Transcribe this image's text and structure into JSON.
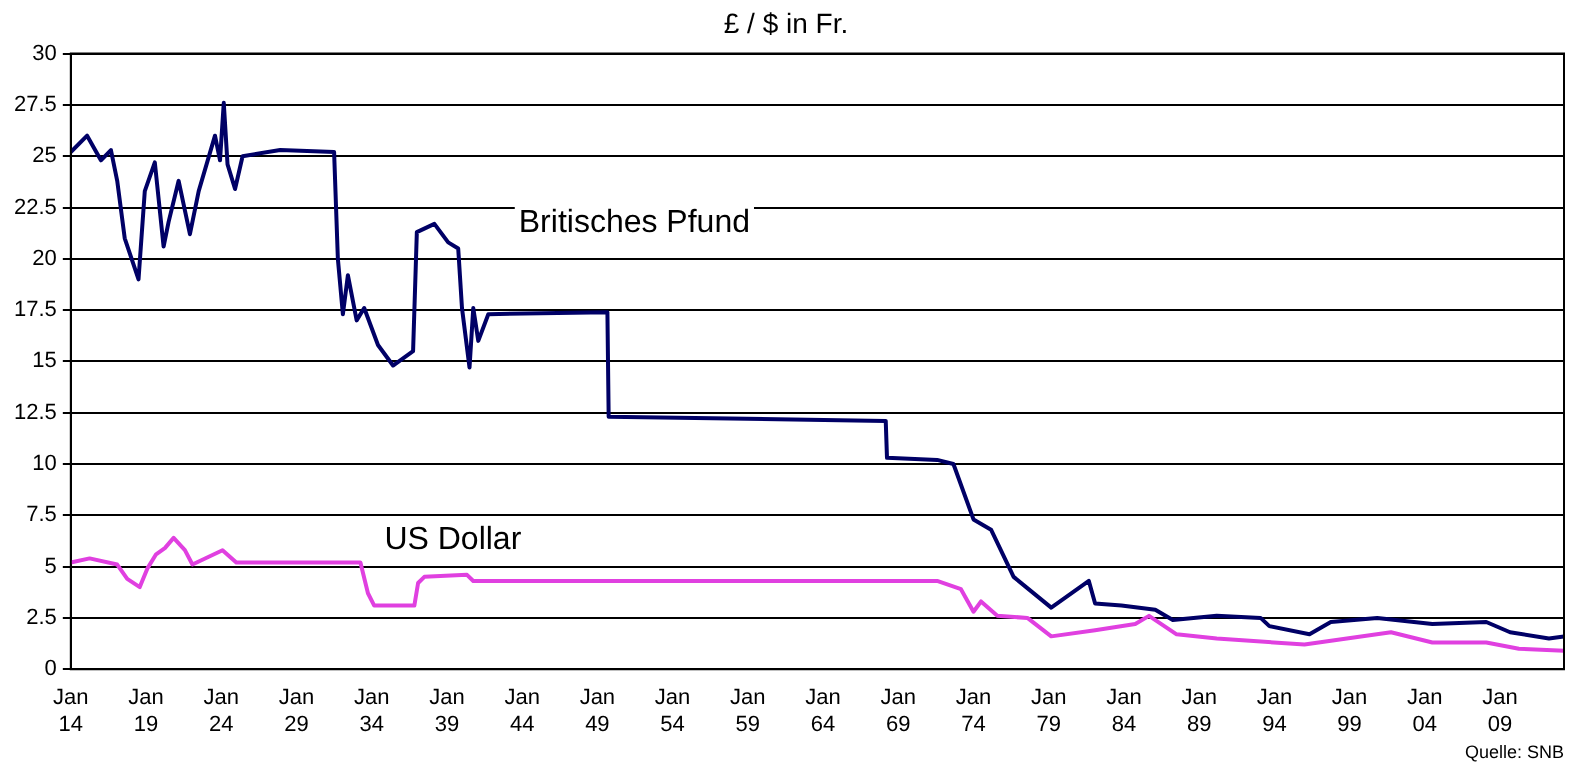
{
  "chart_data": {
    "type": "line",
    "title": "£ / $ in Fr.",
    "annotations": [
      "Quelle: SNB"
    ],
    "legend": false,
    "grid": "y",
    "marker": "none",
    "line_style": "solid",
    "xlim": [
      "1914-01",
      "2013-04"
    ],
    "xticks": [
      {
        "value": "1914-01",
        "label": "Jan 14"
      },
      {
        "value": "1919-01",
        "label": "Jan 19"
      },
      {
        "value": "1924-01",
        "label": "Jan 24"
      },
      {
        "value": "1929-01",
        "label": "Jan 29"
      },
      {
        "value": "1934-01",
        "label": "Jan 34"
      },
      {
        "value": "1939-01",
        "label": "Jan 39"
      },
      {
        "value": "1944-01",
        "label": "Jan 44"
      },
      {
        "value": "1949-01",
        "label": "Jan 49"
      },
      {
        "value": "1954-01",
        "label": "Jan 54"
      },
      {
        "value": "1959-01",
        "label": "Jan 59"
      },
      {
        "value": "1964-01",
        "label": "Jan 64"
      },
      {
        "value": "1969-01",
        "label": "Jan 69"
      },
      {
        "value": "1974-01",
        "label": "Jan 74"
      },
      {
        "value": "1979-01",
        "label": "Jan 79"
      },
      {
        "value": "1984-01",
        "label": "Jan 84"
      },
      {
        "value": "1989-01",
        "label": "Jan 89"
      },
      {
        "value": "1994-01",
        "label": "Jan 94"
      },
      {
        "value": "1999-01",
        "label": "Jan 99"
      },
      {
        "value": "2004-01",
        "label": "Jan 04"
      },
      {
        "value": "2009-01",
        "label": "Jan 09"
      }
    ],
    "ylim": [
      0,
      30
    ],
    "yticks": [
      0,
      2.5,
      5,
      7.5,
      10,
      12.5,
      15,
      17.5,
      20,
      22.5,
      25,
      27.5,
      30
    ],
    "series": [
      {
        "name": "Britisches Pfund",
        "color": "#000066",
        "x": [
          "1914-01",
          "1915-02",
          "1916-01",
          "1916-09",
          "1917-02",
          "1917-08",
          "1918-07",
          "1918-12",
          "1919-08",
          "1920-03",
          "1920-07",
          "1921-03",
          "1921-12",
          "1922-07",
          "1923-08",
          "1923-12",
          "1924-03",
          "1924-06",
          "1924-12",
          "1925-06",
          "1927-12",
          "1931-07",
          "1931-10",
          "1932-02",
          "1932-06",
          "1933-01",
          "1933-07",
          "1934-06",
          "1935-06",
          "1936-10",
          "1937-01",
          "1938-03",
          "1939-02",
          "1939-10",
          "1940-01",
          "1940-07",
          "1940-10",
          "1941-02",
          "1941-10",
          "1949-09",
          "1949-10",
          "1968-03",
          "1968-04",
          "1971-08",
          "1972-09",
          "1974-01",
          "1975-03",
          "1976-09",
          "1979-03",
          "1981-09",
          "1982-02",
          "1983-11",
          "1986-02",
          "1987-04",
          "1990-03",
          "1993-02",
          "1993-09",
          "1996-05",
          "1997-10",
          "2000-11",
          "2004-07",
          "2008-02",
          "2009-09",
          "2012-04",
          "2013-04"
        ],
        "values": [
          25.2,
          26,
          24.8,
          25.3,
          23.8,
          21,
          19,
          23.3,
          24.7,
          20.6,
          21.8,
          23.8,
          21.2,
          23.3,
          26,
          24.8,
          27.6,
          24.6,
          23.4,
          25,
          25.3,
          25.2,
          20,
          17.3,
          19.2,
          17,
          17.6,
          15.8,
          14.8,
          15.5,
          21.3,
          21.7,
          20.8,
          20.5,
          17.6,
          14.7,
          17.6,
          16,
          17.3,
          17.4,
          12.3,
          12.1,
          10.3,
          10.2,
          10,
          7.3,
          6.8,
          4.5,
          3,
          4.3,
          3.2,
          3.1,
          2.9,
          2.4,
          2.6,
          2.5,
          2.1,
          1.7,
          2.3,
          2.5,
          2.2,
          2.3,
          1.8,
          1.5,
          1.6
        ]
      },
      {
        "name": "US Dollar",
        "color": "#e040e0",
        "x": [
          "1914-01",
          "1915-04",
          "1917-02",
          "1917-10",
          "1918-08",
          "1919-02",
          "1919-09",
          "1920-04",
          "1920-11",
          "1921-08",
          "1922-02",
          "1924-02",
          "1925-01",
          "1933-04",
          "1933-10",
          "1934-03",
          "1936-11",
          "1937-02",
          "1937-07",
          "1940-05",
          "1940-10",
          "1971-08",
          "1973-03",
          "1974-01",
          "1974-07",
          "1975-08",
          "1977-08",
          "1979-03",
          "1982-02",
          "1984-10",
          "1985-09",
          "1987-07",
          "1990-03",
          "1996-01",
          "2001-10",
          "2004-07",
          "2008-02",
          "2010-04",
          "2013-04"
        ],
        "values": [
          5.2,
          5.4,
          5.1,
          4.4,
          4,
          4.9,
          5.6,
          5.9,
          6.4,
          5.8,
          5.1,
          5.8,
          5.2,
          5.2,
          3.7,
          3.1,
          3.1,
          4.2,
          4.5,
          4.6,
          4.3,
          4.3,
          3.9,
          2.8,
          3.3,
          2.6,
          2.5,
          1.6,
          1.9,
          2.2,
          2.6,
          1.7,
          1.5,
          1.2,
          1.8,
          1.3,
          1.3,
          1,
          0.9
        ]
      }
    ]
  }
}
